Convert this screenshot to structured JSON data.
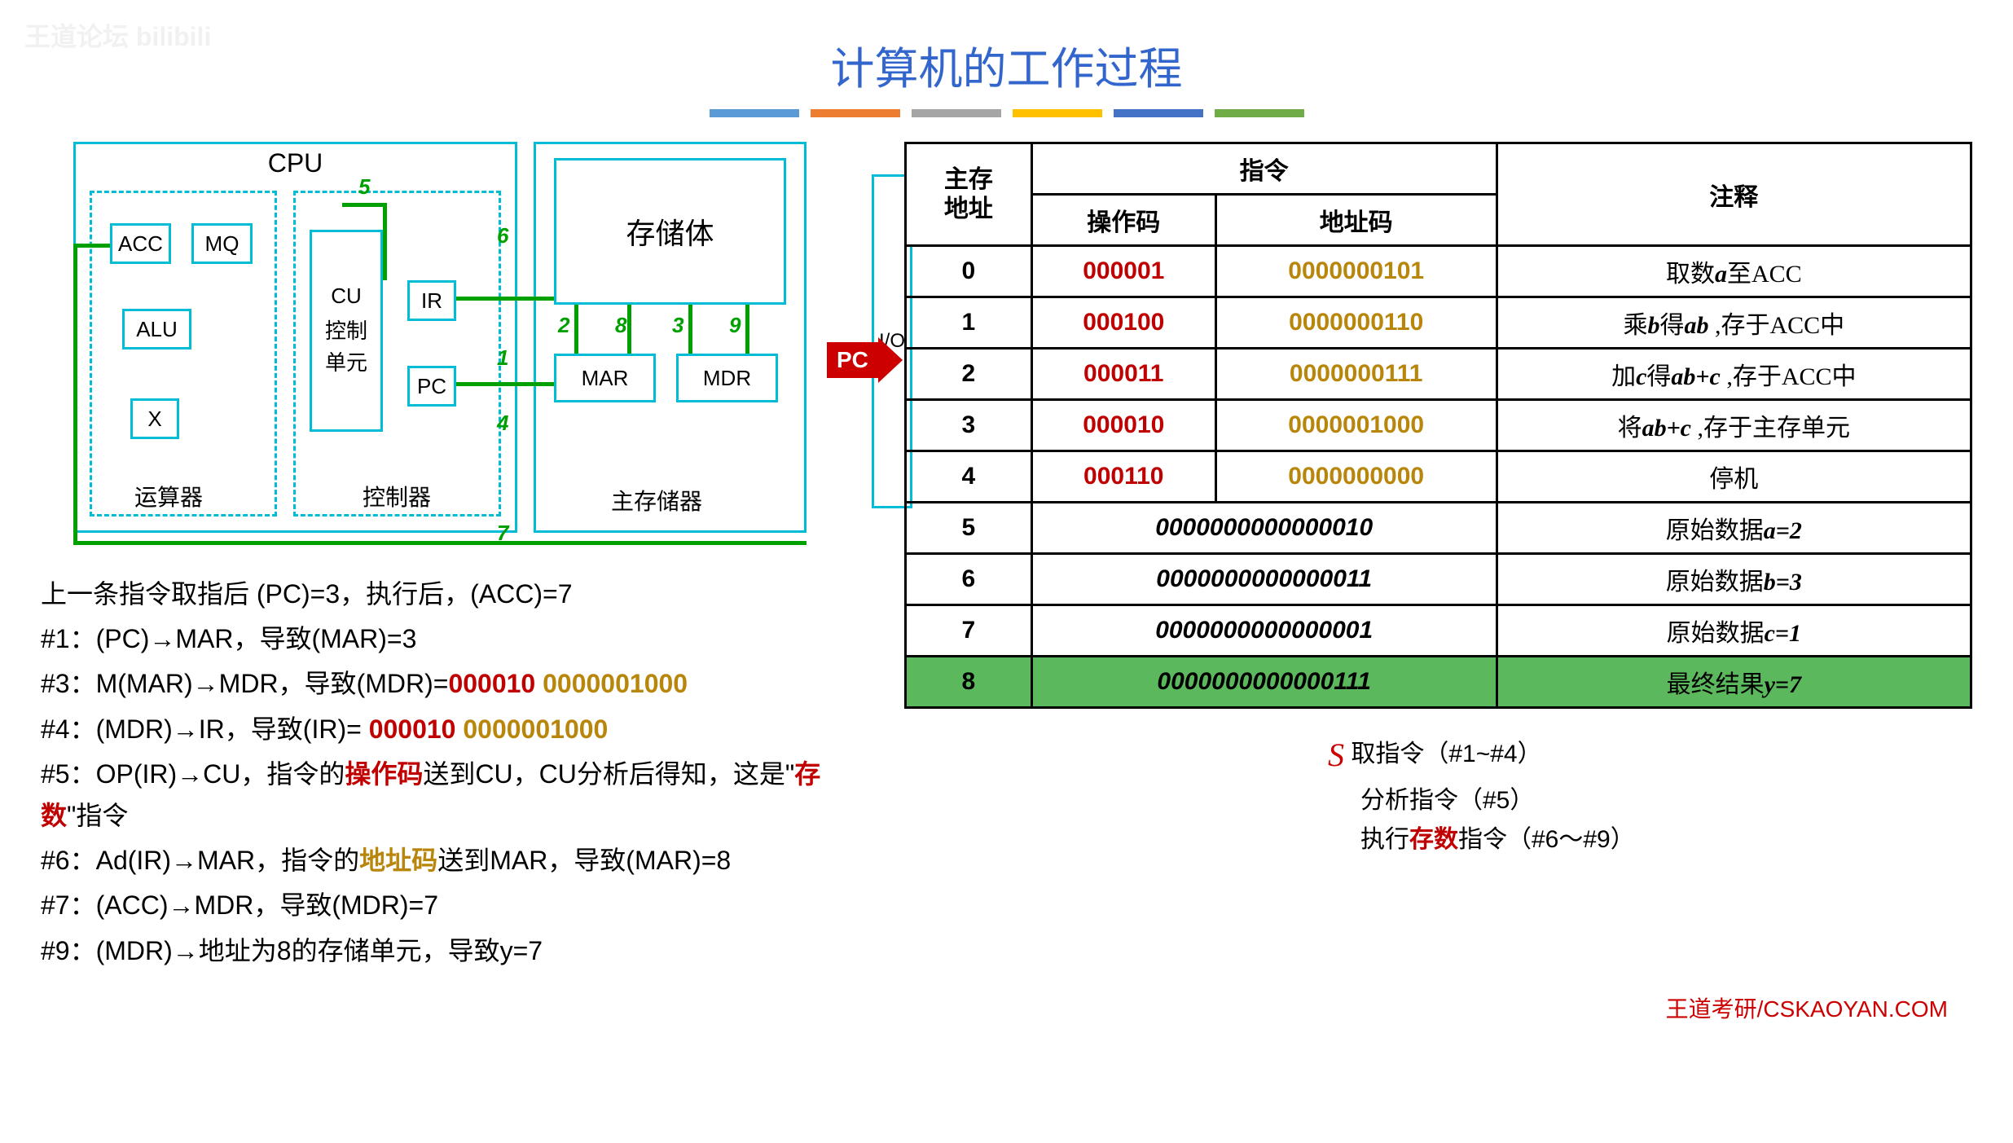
{
  "watermark": "王道论坛 bilibili",
  "title": "计算机的工作过程",
  "bars": {
    "colors": [
      "#5b9bd5",
      "#ed7d31",
      "#a5a5a5",
      "#ffc000",
      "#4472c4",
      "#70ad47"
    ]
  },
  "diagram": {
    "cpu": "CPU",
    "acc": "ACC",
    "mq": "MQ",
    "alu": "ALU",
    "x": "X",
    "cu": "CU",
    "cu_sub": "控制\n单元",
    "ir": "IR",
    "pc": "PC",
    "mem": "存储体",
    "mar": "MAR",
    "mdr": "MDR",
    "io": "I/O",
    "alu_label": "运算器",
    "ctrl_label": "控制器",
    "mem_label": "主存储器",
    "nums": {
      "n1": "1",
      "n2": "2",
      "n3": "3",
      "n4": "4",
      "n5": "5",
      "n6": "6",
      "n7": "7",
      "n8": "8",
      "n9": "9"
    }
  },
  "steps": {
    "intro": "上一条指令取指后 (PC)=3，执行后，(ACC)=7",
    "s1": "#1：(PC)→MAR，导致(MAR)=3",
    "s3_pre": "#3：M(MAR)→MDR，导致(MDR)=",
    "s3_op": "000010",
    "s3_addr": "0000001000",
    "s4_pre": "#4：(MDR)→IR，导致(IR)= ",
    "s4_op": "000010",
    "s4_addr": "0000001000",
    "s5_a": "#5：OP(IR)→CU，指令的",
    "s5_op": "操作码",
    "s5_b": "送到CU，CU分析后得知，这是\"",
    "s5_c": "存数",
    "s5_d": "\"指令",
    "s6_a": "#6：Ad(IR)→MAR，指令的",
    "s6_addr": "地址码",
    "s6_b": "送到MAR，导致(MAR)=8",
    "s7": "#7：(ACC)→MDR，导致(MDR)=7",
    "s9": "#9：(MDR)→地址为8的存储单元，导致y=7"
  },
  "table": {
    "h_addr": "主存\n地址",
    "h_instr": "指令",
    "h_op": "操作码",
    "h_acode": "地址码",
    "h_comment": "注释",
    "rows": [
      {
        "addr": "0",
        "op": "000001",
        "acode": "0000000101",
        "comment_pre": "取数",
        "comment_var": "a",
        "comment_post": "至ACC"
      },
      {
        "addr": "1",
        "op": "000100",
        "acode": "0000000110",
        "comment_pre": "乘",
        "comment_var": "b",
        "comment_mid": "得",
        "comment_var2": "ab",
        "comment_post": " ,存于ACC中"
      },
      {
        "addr": "2",
        "op": "000011",
        "acode": "0000000111",
        "comment_pre": "加",
        "comment_var": "c",
        "comment_mid": "得",
        "comment_var2": "ab+c",
        "comment_post": " ,存于ACC中"
      },
      {
        "addr": "3",
        "op": "000010",
        "acode": "0000001000",
        "comment_pre": "将",
        "comment_var": "ab+c",
        "comment_post": " ,存于主存单元"
      },
      {
        "addr": "4",
        "op": "000110",
        "acode": "0000000000",
        "comment_full": "停机"
      },
      {
        "addr": "5",
        "data": "0000000000000010",
        "comment_pre": "原始数据",
        "comment_var": "a=2"
      },
      {
        "addr": "6",
        "data": "0000000000000011",
        "comment_pre": "原始数据",
        "comment_var": "b=3"
      },
      {
        "addr": "7",
        "data": "0000000000000001",
        "comment_pre": "原始数据",
        "comment_var": "c=1"
      },
      {
        "addr": "8",
        "data": "0000000000000111",
        "comment_pre": "最终结果",
        "comment_var": "y=7",
        "green": true
      }
    ]
  },
  "pc_label": "PC",
  "legend": {
    "l1": " 取指令（#1~#4）",
    "l2": "分析指令（#5）",
    "l3_a": "执行",
    "l3_b": "存数",
    "l3_c": "指令（#6～#9）"
  },
  "footer": "王道考研/CSKAOYAN.COM"
}
